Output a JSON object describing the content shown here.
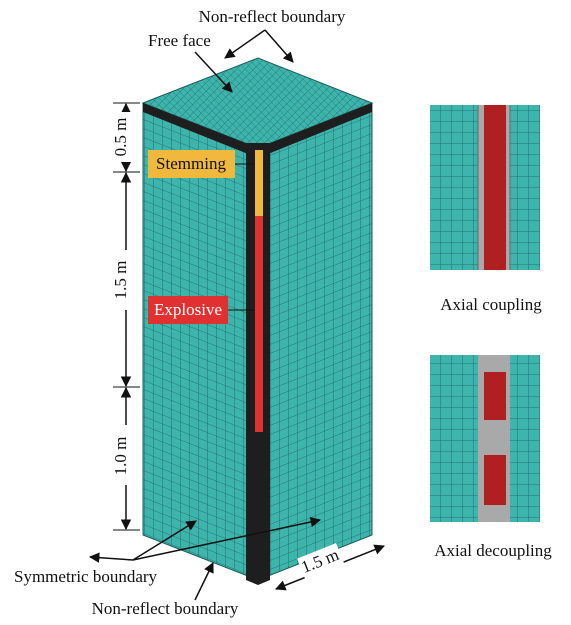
{
  "labels": {
    "top_boundary": "Non-reflect boundary",
    "free_face": "Free face",
    "stemming": "Stemming",
    "explosive": "Explosive",
    "symmetric_boundary": "Symmetric boundary",
    "bottom_boundary": "Non-reflect boundary"
  },
  "dimensions": [
    "0.5 m",
    "1.5 m",
    "1.0 m"
  ],
  "width_dimension": "1.5 m",
  "insets": [
    {
      "caption": "Axial coupling"
    },
    {
      "caption": "Axial decoupling"
    }
  ]
}
